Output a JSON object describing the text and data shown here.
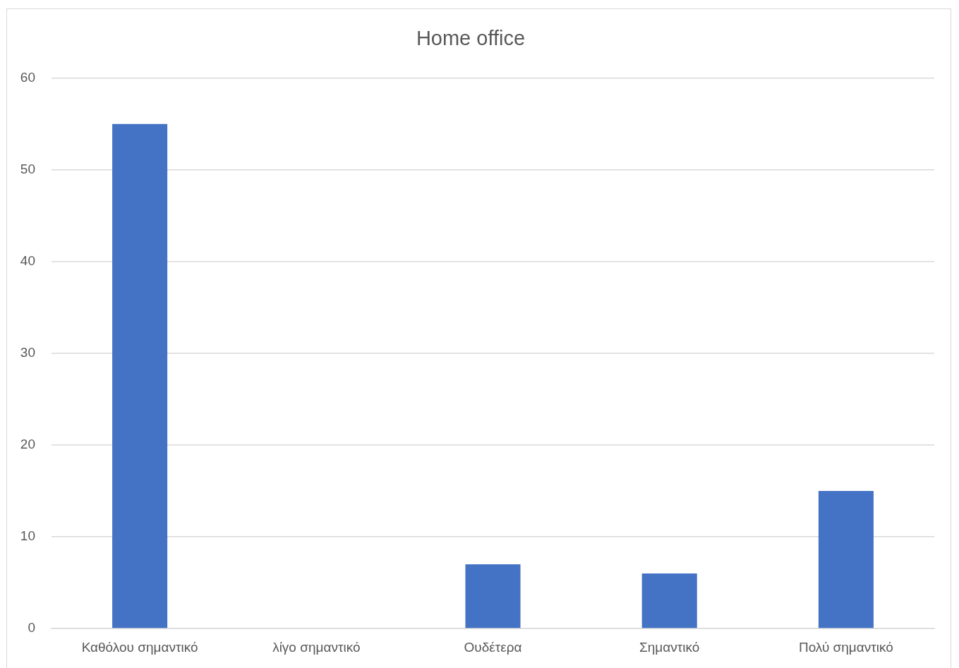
{
  "chart_data": {
    "type": "bar",
    "title": "Home office",
    "categories": [
      "Καθόλου σημαντικό",
      "λίγο σημαντικό",
      "Ουδέτερα",
      "Σημαντικό",
      "Πολύ σημαντικό"
    ],
    "values": [
      55,
      0,
      7,
      6,
      15
    ],
    "color": "#4472c4",
    "ylim": [
      0,
      60
    ],
    "yticks": [
      0,
      10,
      20,
      30,
      40,
      50,
      60
    ],
    "grid": "y"
  }
}
